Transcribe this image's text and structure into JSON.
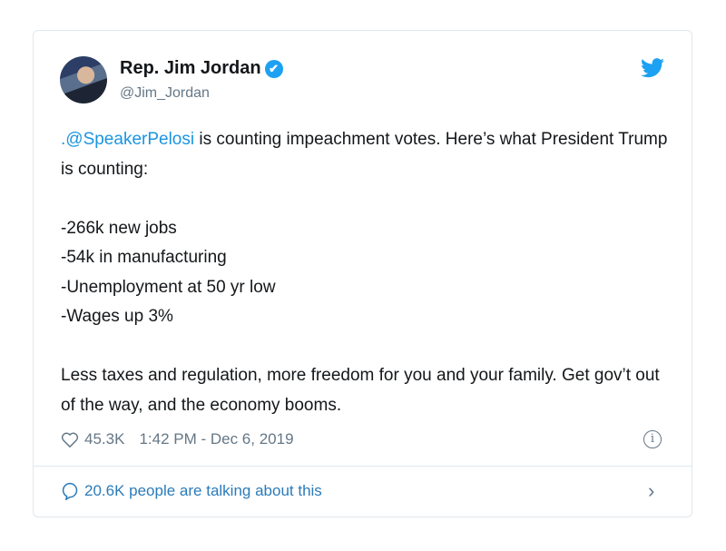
{
  "author": {
    "name": "Rep. Jim Jordan",
    "handle": "@Jim_Jordan",
    "verified": true
  },
  "tweet": {
    "mention": ".@SpeakerPelosi",
    "text_after_mention": " is counting impeachment votes. Here’s what President Trump is counting:\n\n-266k new jobs\n-54k in manufacturing\n-Unemployment at 50 yr low\n-Wages up 3%\n\nLess taxes and regulation, more freedom for you and your family. Get gov’t out of the way, and the economy booms."
  },
  "footer": {
    "likes": "45.3K",
    "timestamp": "1:42 PM - Dec 6, 2019"
  },
  "conversation": {
    "label": "20.6K people are talking about this"
  },
  "colors": {
    "accent": "#1da1f2",
    "link": "#2b7bb9",
    "muted": "#657786"
  },
  "icons": [
    "twitter-bird-icon",
    "verified-badge-icon",
    "heart-icon",
    "info-icon",
    "speech-bubble-icon",
    "chevron-right-icon"
  ]
}
